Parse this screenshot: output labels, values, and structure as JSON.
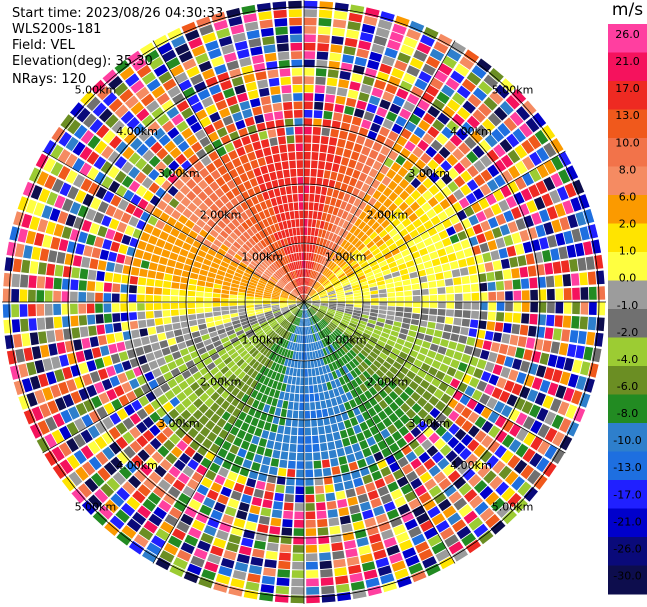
{
  "header": {
    "start_time": "Start time: 2023/08/26 04:30:33",
    "instrument": "WLS200s-181",
    "field": "Field: VEL",
    "elevation": "Elevation(deg): 35.30",
    "nrays": "NRays: 120"
  },
  "colorbar": {
    "unit": "m/s",
    "ticks": [
      "26.0",
      "21.0",
      "17.0",
      "13.0",
      "10.0",
      "8.0",
      "6.0",
      "2.0",
      "1.0",
      "0.0",
      "-1.0",
      "-2.0",
      "-4.0",
      "-6.0",
      "-8.0",
      "-10.0",
      "-13.0",
      "-17.0",
      "-21.0",
      "-26.0",
      "-30.0"
    ],
    "colors": [
      "#ff3fa0",
      "#f5125d",
      "#ee2a22",
      "#f0591c",
      "#f2734a",
      "#f58b62",
      "#fb9a00",
      "#ffe400",
      "#ffff40",
      "#9c9c9c",
      "#707070",
      "#9ccc33",
      "#6b8e23",
      "#228b22",
      "#2e7fcc",
      "#1e6fe0",
      "#2020ff",
      "#0000cc",
      "#0a0a7a",
      "#0d0d4d"
    ]
  },
  "chart_data": {
    "type": "heatmap",
    "projection": "PPI polar",
    "field": "VEL",
    "nrays": 120,
    "range_rings_km": [
      "1.00km",
      "2.00km",
      "3.00km",
      "4.00km",
      "5.00km"
    ],
    "unit": "m/s",
    "description_values": {
      "north_sector_velocity_ms": 17.0,
      "northeast_sector_velocity_ms": 2.0,
      "east_sector_velocity_ms": 0.0,
      "southeast_sector_velocity_ms": -6.0,
      "south_sector_velocity_ms": -10.0,
      "southwest_sector_velocity_ms": -4.0,
      "west_sector_velocity_ms": 1.0,
      "northwest_sector_velocity_ms": 8.0,
      "valid_range_km": 3.0
    }
  }
}
